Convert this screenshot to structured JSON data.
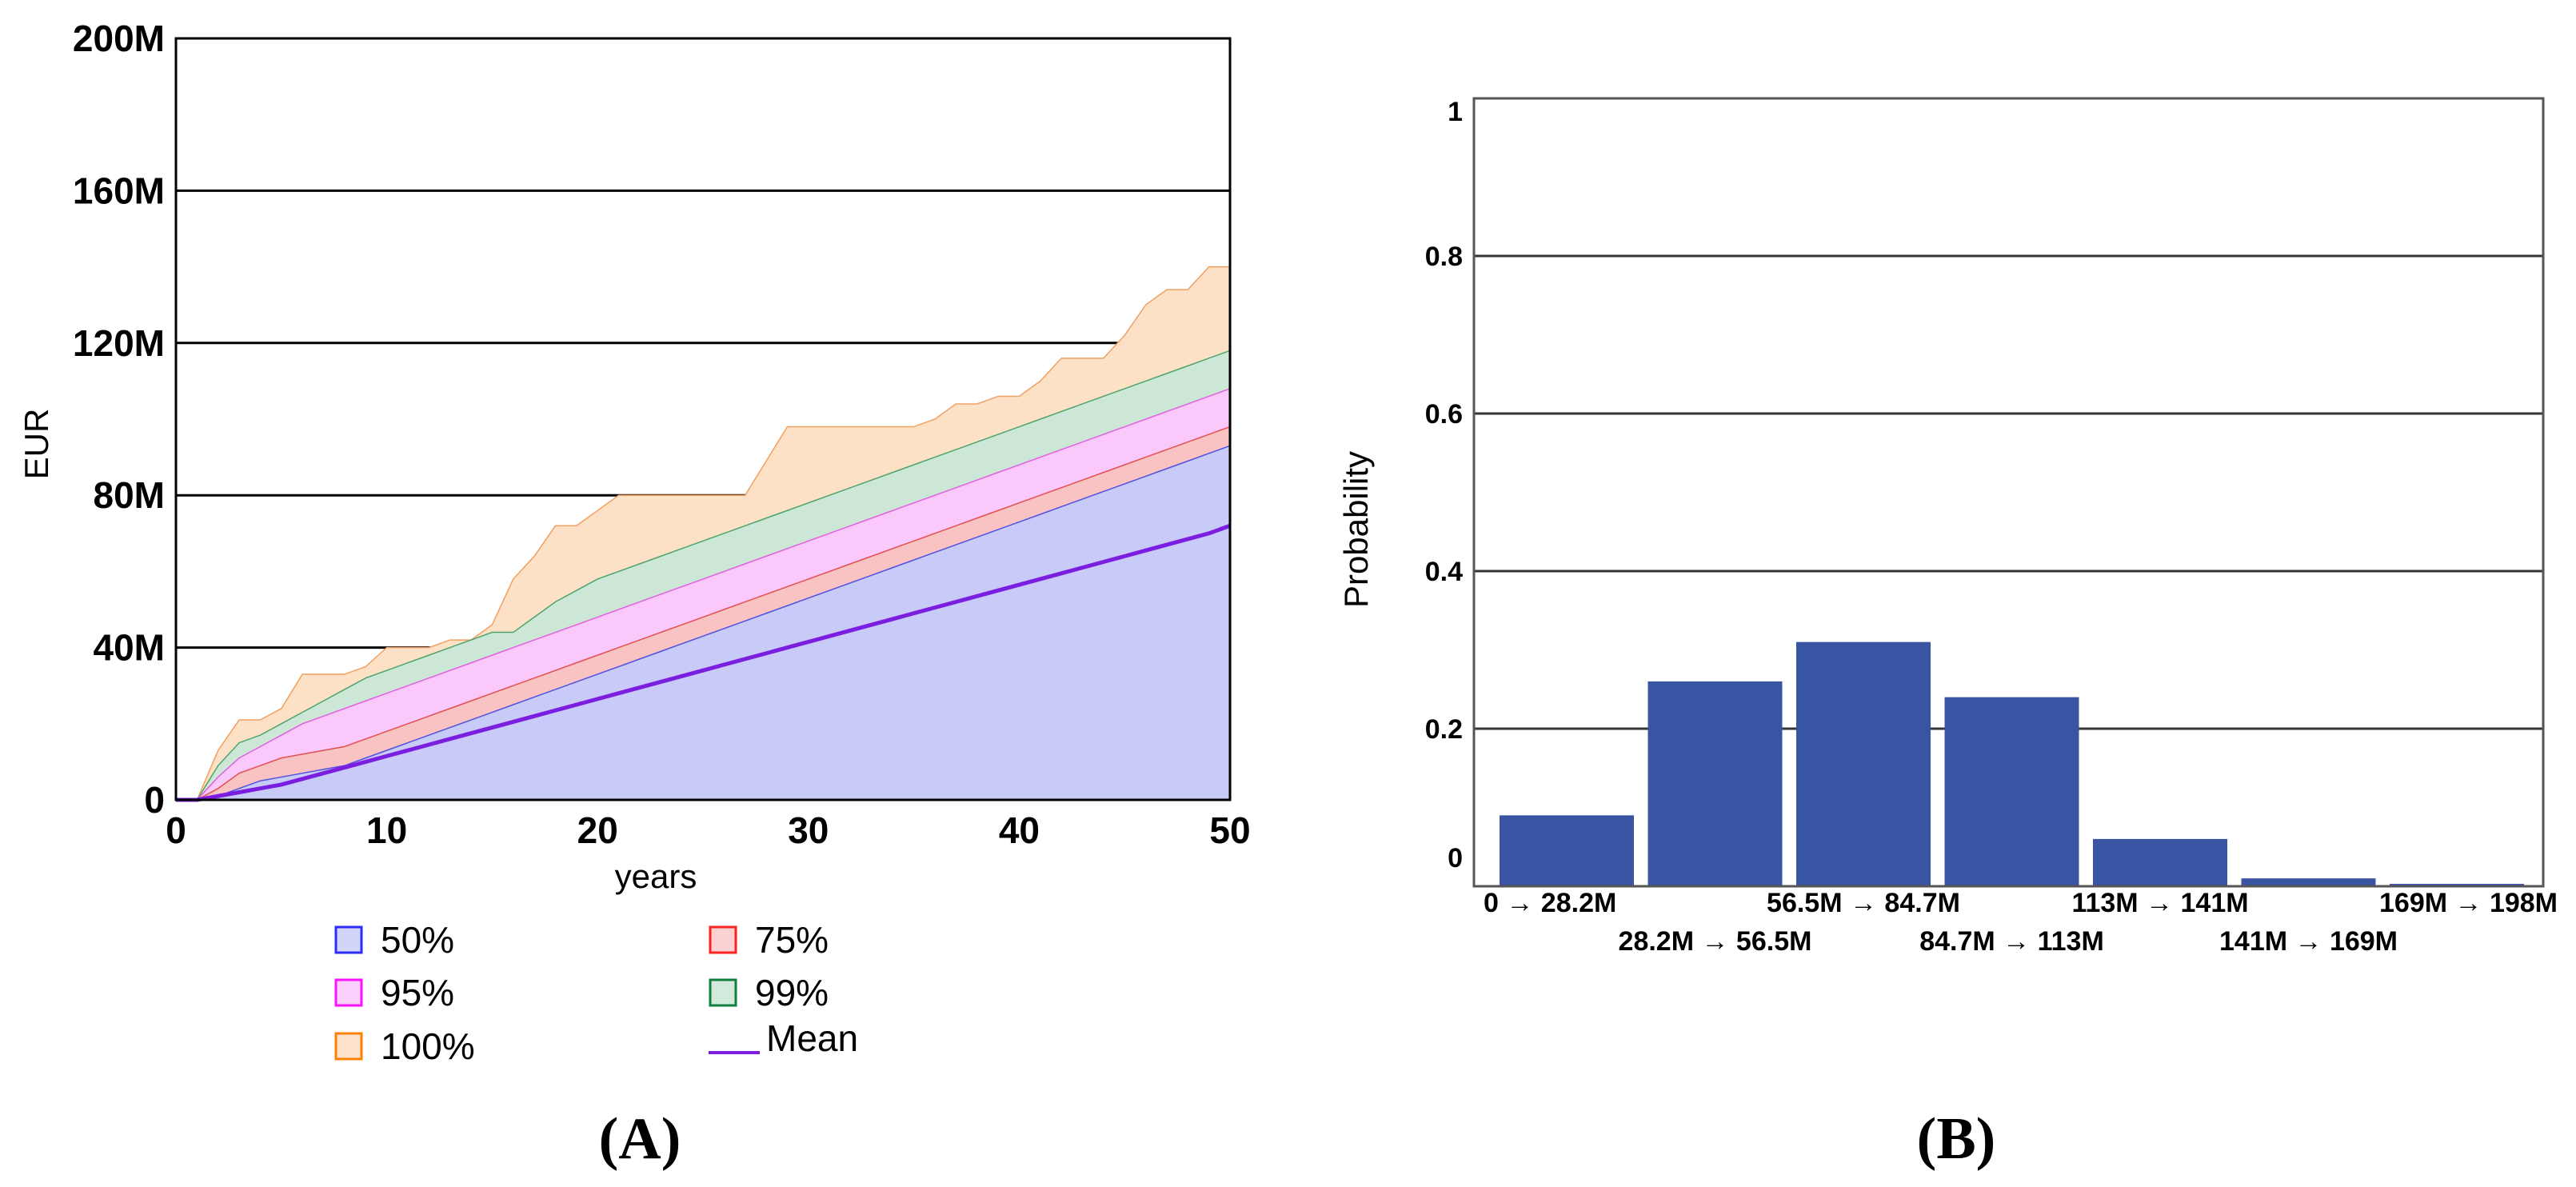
{
  "chart_data": [
    {
      "type": "area",
      "panel_label": "(A)",
      "xlabel": "years",
      "ylabel": "EUR",
      "xlim": [
        0,
        50
      ],
      "ylim": [
        0,
        200
      ],
      "x_ticks": [
        "0",
        "10",
        "20",
        "30",
        "40",
        "50"
      ],
      "y_ticks": [
        "0",
        "40M",
        "80M",
        "120M",
        "160M",
        "200M"
      ],
      "grid": "horizontal",
      "legend_position": "below",
      "colors": {
        "50%": "#c8caf8",
        "75%": "#f9c3c3",
        "95%": "#fbc8fb",
        "99%": "#cce7d6",
        "100%": "#fde1c7",
        "Mean": "#7b1ee0"
      },
      "legend": [
        {
          "label": "50%",
          "fill": "#d3d4fa",
          "border": "#2c2cff"
        },
        {
          "label": "75%",
          "fill": "#fbd2d2",
          "border": "#ff2020"
        },
        {
          "label": "95%",
          "fill": "#fcd0fc",
          "border": "#ff10ff"
        },
        {
          "label": "99%",
          "fill": "#d2eadb",
          "border": "#108040"
        },
        {
          "label": "100%",
          "fill": "#fde3cb",
          "border": "#ff8000"
        },
        {
          "label": "Mean",
          "line": "#7b1ee0"
        }
      ],
      "x": [
        0,
        1,
        2,
        3,
        4,
        5,
        6,
        7,
        8,
        9,
        10,
        11,
        12,
        13,
        14,
        15,
        16,
        17,
        18,
        19,
        20,
        21,
        22,
        23,
        24,
        25,
        26,
        27,
        28,
        29,
        30,
        31,
        32,
        33,
        34,
        35,
        36,
        37,
        38,
        39,
        40,
        41,
        42,
        43,
        44,
        45,
        46,
        47,
        48,
        49,
        50
      ],
      "series": [
        {
          "name": "100%",
          "upper": [
            0,
            0,
            13,
            21,
            21,
            24,
            33,
            33,
            33,
            35,
            40,
            40,
            40,
            42,
            42,
            46,
            58,
            64,
            72,
            72,
            76,
            80,
            80,
            80,
            80,
            80,
            80,
            80,
            89,
            98,
            98,
            98,
            98,
            98,
            98,
            98,
            100,
            104,
            104,
            106,
            106,
            110,
            116,
            116,
            116,
            122,
            130,
            134,
            134,
            140,
            140
          ],
          "lower": [
            0,
            0,
            0,
            0,
            0,
            0,
            0,
            0,
            0,
            0,
            0,
            0,
            0,
            0,
            0,
            0,
            0,
            0,
            0,
            0,
            0,
            0,
            0,
            0,
            0,
            0,
            0,
            0,
            0,
            0,
            0,
            0,
            0,
            0,
            0,
            0,
            0,
            0,
            0,
            0,
            0,
            0,
            0,
            0,
            0,
            0,
            0,
            0,
            0,
            0,
            0
          ]
        },
        {
          "name": "99%",
          "upper": [
            0,
            0,
            9,
            15,
            17,
            20,
            23,
            26,
            29,
            32,
            34,
            36,
            38,
            40,
            42,
            44,
            44,
            48,
            52,
            55,
            58,
            60,
            62,
            64,
            66,
            68,
            70,
            72,
            74,
            76,
            78,
            80,
            82,
            84,
            86,
            88,
            90,
            92,
            94,
            96,
            98,
            100,
            102,
            104,
            106,
            108,
            110,
            112,
            114,
            116,
            118
          ],
          "lower": [
            0,
            0,
            0,
            0,
            0,
            0,
            0,
            0,
            0,
            0,
            0,
            0,
            0,
            0,
            0,
            0,
            0,
            0,
            0,
            0,
            0,
            0,
            0,
            0,
            0,
            0,
            0,
            0,
            0,
            0,
            0,
            0,
            0,
            0,
            0,
            14,
            14,
            14,
            14,
            14,
            14,
            14,
            14,
            14,
            14,
            14,
            14,
            14,
            14,
            14,
            14
          ]
        },
        {
          "name": "95%",
          "upper": [
            0,
            0,
            6,
            11,
            14,
            17,
            20,
            22,
            24,
            26,
            28,
            30,
            32,
            34,
            36,
            38,
            40,
            42,
            44,
            46,
            48,
            50,
            52,
            54,
            56,
            58,
            60,
            62,
            64,
            66,
            68,
            70,
            72,
            74,
            76,
            78,
            80,
            82,
            84,
            86,
            88,
            90,
            92,
            94,
            96,
            98,
            100,
            102,
            104,
            106,
            108
          ],
          "lower": [
            0,
            0,
            0,
            0,
            0,
            0,
            0,
            0,
            0,
            0,
            0,
            0,
            0,
            0,
            0,
            0,
            0,
            0,
            0,
            0,
            0,
            0,
            0,
            0,
            0,
            0,
            0,
            0,
            0,
            0,
            0,
            0,
            0,
            0,
            0,
            0,
            0,
            0,
            0,
            0,
            0,
            0,
            0,
            0,
            0,
            0,
            0,
            0,
            0,
            0,
            0
          ]
        },
        {
          "name": "75%",
          "upper": [
            0,
            0,
            3,
            7,
            9,
            11,
            12,
            13,
            14,
            16,
            18,
            20,
            22,
            24,
            26,
            28,
            30,
            32,
            34,
            36,
            38,
            40,
            42,
            44,
            46,
            48,
            50,
            52,
            54,
            56,
            58,
            60,
            62,
            64,
            66,
            68,
            70,
            72,
            74,
            76,
            78,
            80,
            82,
            84,
            86,
            88,
            90,
            92,
            94,
            96,
            98
          ],
          "lower": [
            0,
            0,
            0,
            0,
            0,
            0,
            0,
            0,
            0,
            0,
            0,
            0,
            0,
            0,
            0,
            0,
            0,
            0,
            0,
            0,
            0,
            0,
            0,
            0,
            0,
            0,
            0,
            0,
            0,
            0,
            0,
            0,
            0,
            0,
            0,
            0,
            0,
            0,
            0,
            0,
            0,
            0,
            0,
            0,
            0,
            0,
            0,
            0,
            0,
            0,
            0
          ]
        },
        {
          "name": "50%",
          "upper": [
            0,
            0,
            1,
            3,
            5,
            6,
            7,
            8,
            9,
            11,
            13,
            15,
            17,
            19,
            21,
            23,
            25,
            27,
            29,
            31,
            33,
            35,
            37,
            39,
            41,
            43,
            45,
            47,
            49,
            51,
            53,
            55,
            57,
            59,
            61,
            63,
            65,
            67,
            69,
            71,
            73,
            75,
            77,
            79,
            81,
            83,
            85,
            87,
            89,
            91,
            93
          ],
          "lower": [
            0,
            0,
            0,
            0,
            0,
            0,
            0,
            0,
            0,
            0,
            0,
            0,
            0,
            0,
            0,
            0,
            0,
            0,
            0,
            0,
            0,
            0,
            0,
            0,
            0,
            0,
            0,
            0,
            0,
            0,
            0,
            0,
            0,
            0,
            0,
            0,
            0,
            0,
            0,
            0,
            0,
            0,
            0,
            0,
            0,
            0,
            0,
            0,
            0,
            0,
            0
          ]
        },
        {
          "name": "Mean",
          "values": [
            0,
            0,
            1,
            2,
            3,
            4,
            5.5,
            7,
            8.5,
            10,
            11.5,
            13,
            14.5,
            16,
            17.5,
            19,
            20.5,
            22,
            23.5,
            25,
            26.5,
            28,
            29.5,
            31,
            32.5,
            34,
            35.5,
            37,
            38.5,
            40,
            41.5,
            43,
            44.5,
            46,
            47.5,
            49,
            50.5,
            52,
            53.5,
            55,
            56.5,
            58,
            59.5,
            61,
            62.5,
            64,
            65.5,
            67,
            68.5,
            70,
            72
          ]
        }
      ]
    },
    {
      "type": "bar",
      "panel_label": "(B)",
      "xlabel": "",
      "ylabel": "Probability",
      "ylim": [
        0,
        1
      ],
      "y_ticks": [
        "0",
        "0.2",
        "0.4",
        "0.6",
        "0.8",
        "1"
      ],
      "grid": "horizontal",
      "bar_color": "#3a54a4",
      "categories": [
        "0 → 28.2M",
        "28.2M → 56.5M",
        "56.5M → 84.7M",
        "84.7M → 113M",
        "113M → 141M",
        "141M → 169M",
        "169M → 198M"
      ],
      "values": [
        0.09,
        0.26,
        0.31,
        0.24,
        0.06,
        0.01,
        0.003
      ]
    }
  ]
}
